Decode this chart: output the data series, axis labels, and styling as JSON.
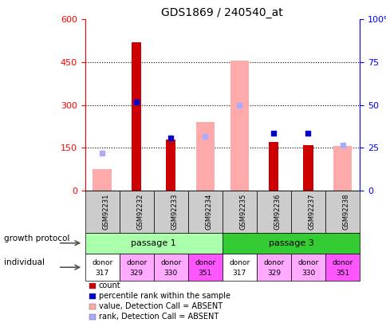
{
  "title": "GDS1869 / 240540_at",
  "samples": [
    "GSM92231",
    "GSM92232",
    "GSM92233",
    "GSM92234",
    "GSM92235",
    "GSM92236",
    "GSM92237",
    "GSM92238"
  ],
  "count_values": [
    0,
    520,
    180,
    0,
    0,
    170,
    160,
    0
  ],
  "percentile_rank": [
    0,
    310,
    185,
    0,
    0,
    200,
    200,
    0
  ],
  "absent_value": [
    75,
    0,
    0,
    240,
    455,
    0,
    0,
    155
  ],
  "absent_rank": [
    130,
    0,
    0,
    190,
    300,
    0,
    0,
    158
  ],
  "count_color": "#cc0000",
  "percentile_color": "#0000cc",
  "absent_value_color": "#ffaaaa",
  "absent_rank_color": "#aaaaff",
  "passage1_color": "#aaffaa",
  "passage3_color": "#33cc33",
  "individual_colors": [
    "#ffffff",
    "#ffaaff",
    "#ffaaff",
    "#ff55ff",
    "#ffffff",
    "#ffaaff",
    "#ffaaff",
    "#ff55ff"
  ],
  "individual_labels_top": [
    "donor",
    "donor",
    "donor",
    "donor",
    "donor",
    "donor",
    "donor",
    "donor"
  ],
  "individual_labels_bot": [
    "317",
    "329",
    "330",
    "351",
    "317",
    "329",
    "330",
    "351"
  ],
  "growth_protocol_label": "growth protocol",
  "individual_label": "individual",
  "legend_items": [
    "count",
    "percentile rank within the sample",
    "value, Detection Call = ABSENT",
    "rank, Detection Call = ABSENT"
  ],
  "legend_colors": [
    "#cc0000",
    "#0000cc",
    "#ffaaaa",
    "#aaaaff"
  ]
}
